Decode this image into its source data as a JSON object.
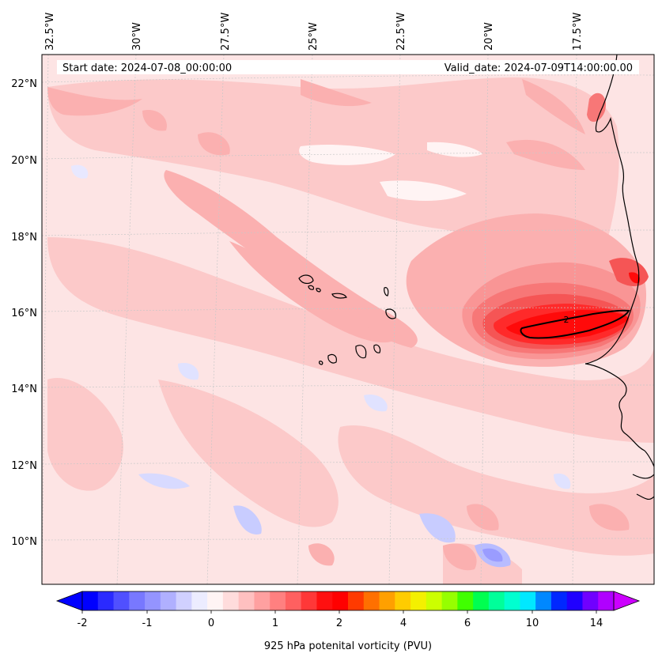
{
  "map": {
    "start_date_label": "Start date: 2024-07-08_00:00:00",
    "valid_date_label": "Valid_date: 2024-07-09T14:00:00.00",
    "contour_label": "2",
    "lon_labels": [
      "32.5°W",
      "30°W",
      "27.5°W",
      "25°W",
      "22.5°W",
      "20°W",
      "17.5°W"
    ],
    "lat_labels": [
      "22°N",
      "20°N",
      "18°N",
      "16°N",
      "14°N",
      "12°N",
      "10°N"
    ],
    "colors": {
      "background": "#fde4e4",
      "light_pink": "#fcc9c9",
      "pink": "#fbb0b0",
      "mid_red": "#f88080",
      "red": "#f54545",
      "deep_red": "#ff0a0a",
      "light_blue": "#e0e2ff",
      "blue": "#b8bcff",
      "coast": "#000000",
      "grid": "#c8c8c8"
    }
  },
  "colorbar": {
    "tick_labels": [
      "-2",
      "-1",
      "0",
      "1",
      "2",
      "4",
      "6",
      "10",
      "14"
    ],
    "label": "925 hPa potenital vorticity (PVU)",
    "colors": [
      "#0000ff",
      "#2a2aff",
      "#5050ff",
      "#7878ff",
      "#9494ff",
      "#b0b0ff",
      "#d0d0ff",
      "#ececff",
      "#fff4f4",
      "#ffdcdc",
      "#ffc0c0",
      "#ffa0a0",
      "#ff8080",
      "#ff6060",
      "#ff3838",
      "#ff1010",
      "#ff0000",
      "#ff3a00",
      "#ff7000",
      "#ffa000",
      "#ffcc00",
      "#f4f000",
      "#ccff00",
      "#96ff00",
      "#40ff00",
      "#00ff50",
      "#00ff9a",
      "#00ffd0",
      "#00e8ff",
      "#0088ff",
      "#0028ff",
      "#2000ff",
      "#7000ff",
      "#b000ff"
    ],
    "under_color": "#0000ff",
    "over_color": "#cc00ff"
  }
}
